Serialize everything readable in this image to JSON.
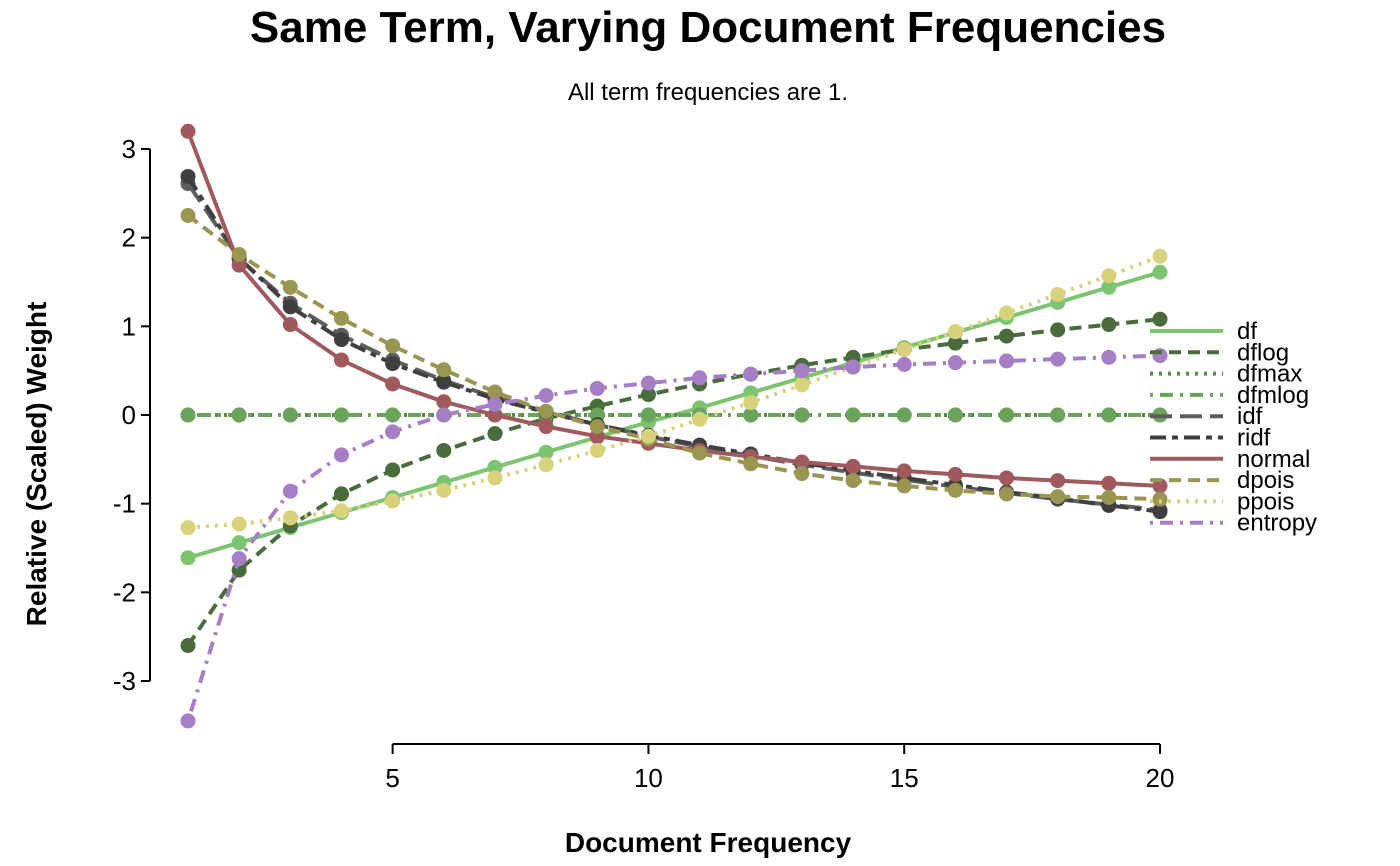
{
  "chart_data": {
    "type": "line",
    "title": "Same Term, Varying Document Frequencies",
    "subtitle": "All term frequencies are 1.",
    "xlabel": "Document Frequency",
    "ylabel": "Relative (Scaled) Weight",
    "xlim": [
      1,
      20
    ],
    "ylim": [
      -3,
      3
    ],
    "xticks": [
      5,
      10,
      15,
      20
    ],
    "yticks": [
      3,
      2,
      1,
      0,
      -1,
      -2,
      -3
    ],
    "grid": false,
    "legend_position": "right",
    "x": [
      1,
      2,
      3,
      4,
      5,
      6,
      7,
      8,
      9,
      10,
      11,
      12,
      13,
      14,
      15,
      16,
      17,
      18,
      19,
      20
    ],
    "series": [
      {
        "name": "df",
        "color": "#7dc470",
        "dash": "solid",
        "values": [
          -1.61,
          -1.44,
          -1.27,
          -1.1,
          -0.93,
          -0.76,
          -0.59,
          -0.42,
          -0.25,
          -0.08,
          0.08,
          0.25,
          0.42,
          0.59,
          0.76,
          0.93,
          1.1,
          1.27,
          1.44,
          1.61
        ]
      },
      {
        "name": "dflog",
        "color": "#4a6b3c",
        "dash": "dashed",
        "values": [
          -2.6,
          -1.75,
          -1.25,
          -0.89,
          -0.62,
          -0.4,
          -0.21,
          -0.04,
          0.1,
          0.23,
          0.35,
          0.46,
          0.56,
          0.65,
          0.74,
          0.81,
          0.89,
          0.96,
          1.02,
          1.08
        ]
      },
      {
        "name": "dfmax",
        "color": "#5a8a47",
        "dash": "dotted",
        "values": [
          0,
          0,
          0,
          0,
          0,
          0,
          0,
          0,
          0,
          0,
          0,
          0,
          0,
          0,
          0,
          0,
          0,
          0,
          0,
          0
        ]
      },
      {
        "name": "dfmlog",
        "color": "#6aa35a",
        "dash": "dotdash",
        "values": [
          0,
          0,
          0,
          0,
          0,
          0,
          0,
          0,
          0,
          0,
          0,
          0,
          0,
          0,
          0,
          0,
          0,
          0,
          0,
          0
        ]
      },
      {
        "name": "idf",
        "color": "#5e5e5e",
        "dash": "longdash",
        "values": [
          2.61,
          1.76,
          1.26,
          0.9,
          0.62,
          0.39,
          0.2,
          0.04,
          -0.11,
          -0.24,
          -0.36,
          -0.46,
          -0.56,
          -0.65,
          -0.73,
          -0.81,
          -0.88,
          -0.95,
          -1.01,
          -1.07
        ]
      },
      {
        "name": "ridf",
        "color": "#3f3f3f",
        "dash": "twodash",
        "values": [
          2.69,
          1.77,
          1.22,
          0.85,
          0.58,
          0.37,
          0.18,
          0.03,
          -0.11,
          -0.23,
          -0.34,
          -0.44,
          -0.54,
          -0.63,
          -0.71,
          -0.79,
          -0.87,
          -0.94,
          -1.02,
          -1.09
        ]
      },
      {
        "name": "normal",
        "color": "#a05a5e",
        "dash": "solid",
        "values": [
          3.2,
          1.69,
          1.02,
          0.62,
          0.35,
          0.15,
          0.0,
          -0.13,
          -0.24,
          -0.32,
          -0.4,
          -0.47,
          -0.53,
          -0.58,
          -0.63,
          -0.67,
          -0.71,
          -0.74,
          -0.77,
          -0.8
        ]
      },
      {
        "name": "dpois",
        "color": "#9a9550",
        "dash": "dashed",
        "values": [
          2.25,
          1.81,
          1.44,
          1.09,
          0.78,
          0.51,
          0.26,
          0.04,
          -0.13,
          -0.27,
          -0.43,
          -0.55,
          -0.66,
          -0.74,
          -0.8,
          -0.85,
          -0.89,
          -0.92,
          -0.93,
          -0.95
        ]
      },
      {
        "name": "ppois",
        "color": "#d9d27d",
        "dash": "dotted",
        "values": [
          -1.27,
          -1.23,
          -1.16,
          -1.08,
          -0.97,
          -0.85,
          -0.71,
          -0.56,
          -0.4,
          -0.24,
          -0.05,
          0.14,
          0.34,
          0.54,
          0.74,
          0.94,
          1.15,
          1.36,
          1.57,
          1.79
        ]
      },
      {
        "name": "entropy",
        "color": "#a57ec5",
        "dash": "dotdash",
        "values": [
          -3.45,
          -1.62,
          -0.86,
          -0.45,
          -0.19,
          0.0,
          0.12,
          0.22,
          0.3,
          0.36,
          0.42,
          0.46,
          0.5,
          0.54,
          0.57,
          0.59,
          0.61,
          0.63,
          0.65,
          0.67
        ]
      }
    ]
  }
}
